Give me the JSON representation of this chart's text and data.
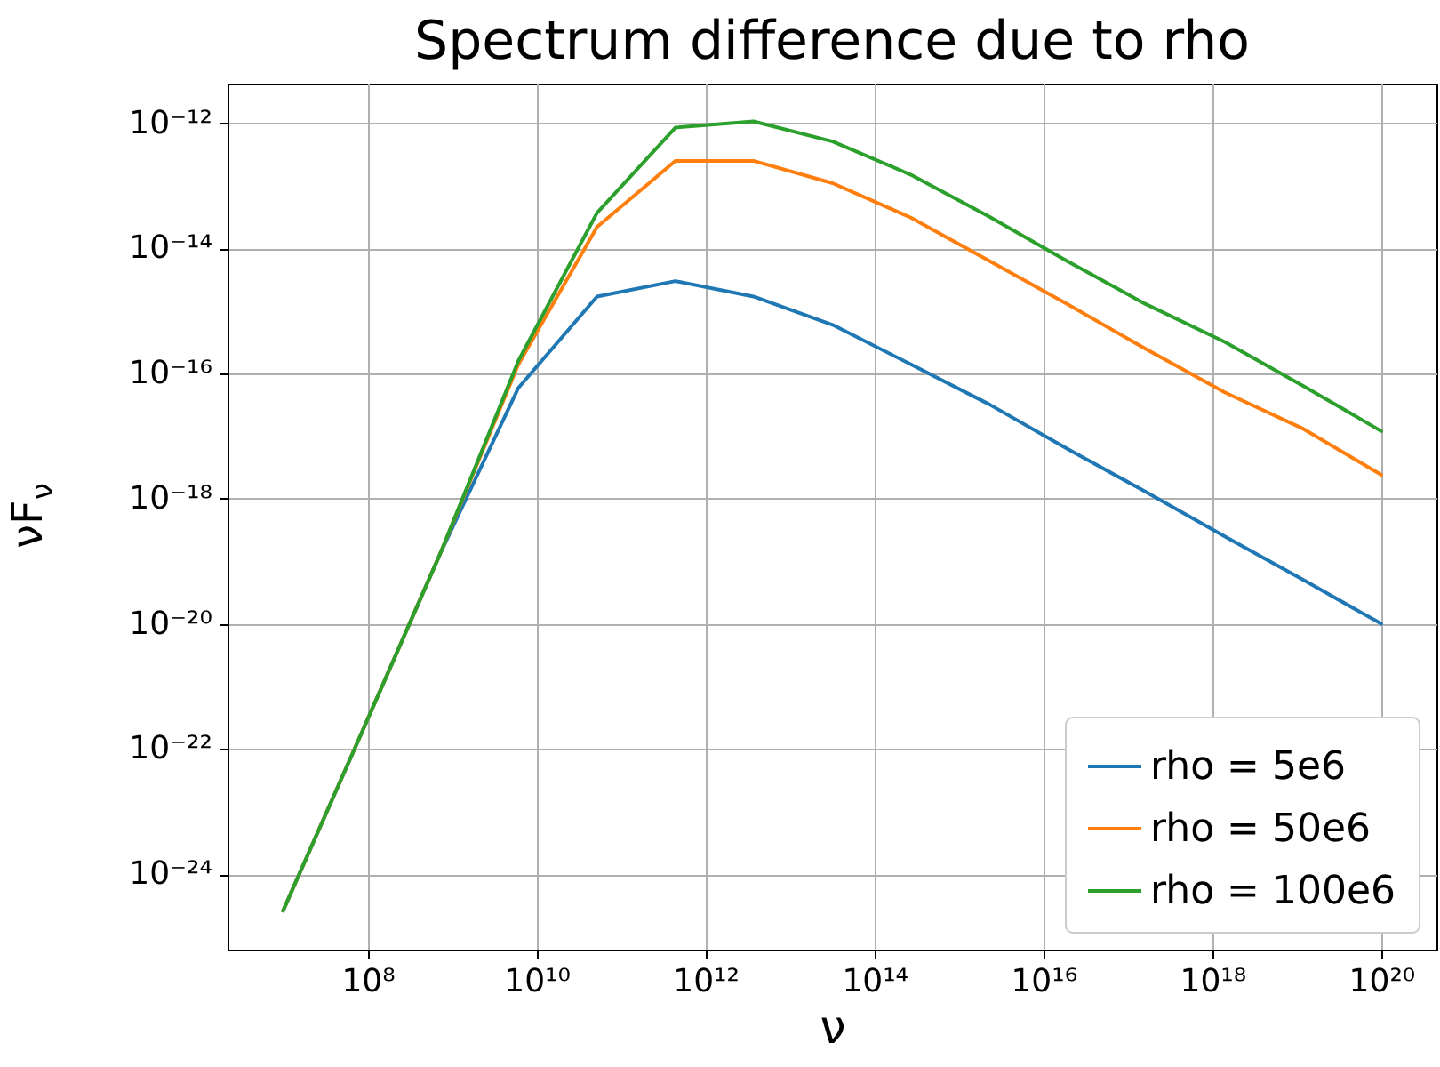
{
  "chart_data": {
    "type": "line",
    "title": "Spectrum difference due to rho",
    "xlabel": "ν",
    "ylabel": "νF$_{ν}$",
    "log": "xy",
    "grid": true,
    "legend": "bottom right",
    "x": [
      10000000.0,
      85000000.0,
      720000000.0,
      6100000000.0,
      52000000000.0,
      440000000000.0,
      3700000000000.0,
      32000000000000.0,
      270000000000000.0,
      2300000000000000.0,
      1.9e+16,
      1.6e+17,
      1.4e+18,
      1.2e+19,
      1e+20
    ],
    "xlim": [
      2200000.0,
      4.5e+20
    ],
    "ylim": [
      6.2e-26,
      4.3e-12
    ],
    "xticks": [
      {
        "value": 100000000.0,
        "label": "10⁸"
      },
      {
        "value": 10000000000.0,
        "label": "10¹⁰"
      },
      {
        "value": 1000000000000.0,
        "label": "10¹²"
      },
      {
        "value": 100000000000000.0,
        "label": "10¹⁴"
      },
      {
        "value": 1e+16,
        "label": "10¹⁶"
      },
      {
        "value": 1e+18,
        "label": "10¹⁸"
      },
      {
        "value": 1e+20,
        "label": "10²⁰"
      }
    ],
    "yticks": [
      {
        "value": 1e-24,
        "label": "10⁻²⁴"
      },
      {
        "value": 1e-22,
        "label": "10⁻²²"
      },
      {
        "value": 1e-20,
        "label": "10⁻²⁰"
      },
      {
        "value": 1e-18,
        "label": "10⁻¹⁸"
      },
      {
        "value": 1e-16,
        "label": "10⁻¹⁶"
      },
      {
        "value": 1e-14,
        "label": "10⁻¹⁴"
      },
      {
        "value": 1e-12,
        "label": "10⁻¹²"
      }
    ],
    "series": [
      {
        "name": "rho = 5e6",
        "color": "#1f77b4",
        "values": [
          2.6e-25,
          1.8e-22,
          1.3e-19,
          5.9e-17,
          1.7e-15,
          3e-15,
          1.7e-15,
          6e-16,
          1.4e-16,
          3.2e-17,
          6.3e-18,
          1.3e-18,
          2.5e-19,
          5e-20,
          1e-20
        ]
      },
      {
        "name": "rho = 50e6",
        "color": "#ff7f0e",
        "values": [
          2.6e-25,
          1.8e-22,
          1.3e-19,
          1.4e-16,
          2.2e-14,
          2.5e-13,
          2.5e-13,
          1.1e-13,
          3.1e-14,
          6.3e-15,
          1.3e-15,
          2.5e-16,
          5e-17,
          1.3e-17,
          2.4e-18
        ]
      },
      {
        "name": "rho = 100e6",
        "color": "#2ca02c",
        "values": [
          2.6e-25,
          1.8e-22,
          1.3e-19,
          1.6e-16,
          3.7e-14,
          8.5e-13,
          1.07e-12,
          5.1e-13,
          1.5e-13,
          3.2e-14,
          6.3e-15,
          1.3e-15,
          3.2e-16,
          6.3e-17,
          1.2e-17
        ]
      }
    ]
  }
}
